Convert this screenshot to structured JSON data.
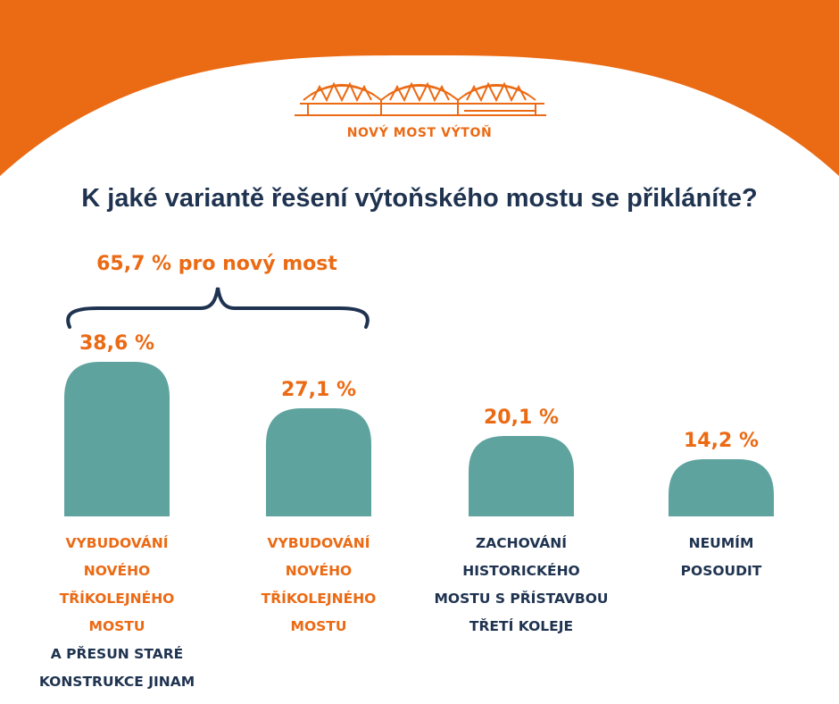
{
  "colors": {
    "accent": "#EB6A14",
    "bar": "#5FA39F",
    "navy": "#1F3350",
    "background": "#FFFFFF"
  },
  "logo": {
    "text": "NOVÝ MOST VÝTOŇ",
    "icon": "bridge-arches-icon"
  },
  "title": "K jaké variantě řešení výtoňského mostu se přikláníte?",
  "group": {
    "label": "65,7 % pro nový most",
    "bracket_icon": "curly-brace-icon"
  },
  "chart_data": {
    "type": "bar",
    "title": "K jaké variantě řešení výtoňského mostu se přikláníte?",
    "categories": [
      "VYBUDOVÁNÍ NOVÉHO TŘÍKOLEJNÉHO MOSTU A PŘESUN STARÉ KONSTRUKCE JINAM",
      "VYBUDOVÁNÍ NOVÉHO TŘÍKOLEJNÉHO MOSTU",
      "ZACHOVÁNÍ HISTORICKÉHO MOSTU S PŘÍSTAVBOU TŘETÍ KOLEJE",
      "NEUMÍM POSOUDIT"
    ],
    "values": [
      38.6,
      27.1,
      20.1,
      14.2
    ],
    "value_labels": [
      "38,6 %",
      "27,1 %",
      "20,1 %",
      "14,2 %"
    ],
    "unit": "%",
    "ylim": [
      0,
      38.6
    ],
    "grid": false,
    "legend": "none",
    "annotation": "65,7 % pro nový most"
  },
  "categories_display": [
    {
      "lines": [
        {
          "text": "VYBUDOVÁNÍ",
          "color": "accent"
        },
        {
          "text": "NOVÉHO",
          "color": "accent"
        },
        {
          "text": "TŘÍKOLEJNÉHO",
          "color": "accent"
        },
        {
          "text": "MOSTU",
          "color": "accent"
        },
        {
          "text": "A PŘESUN STARÉ",
          "color": "navy"
        },
        {
          "text": "KONSTRUKCE JINAM",
          "color": "navy"
        }
      ]
    },
    {
      "lines": [
        {
          "text": "VYBUDOVÁNÍ",
          "color": "accent"
        },
        {
          "text": "NOVÉHO",
          "color": "accent"
        },
        {
          "text": "TŘÍKOLEJNÉHO",
          "color": "accent"
        },
        {
          "text": "MOSTU",
          "color": "accent"
        }
      ]
    },
    {
      "lines": [
        {
          "text": "ZACHOVÁNÍ",
          "color": "navy"
        },
        {
          "text": "HISTORICKÉHO",
          "color": "navy"
        },
        {
          "text": "MOSTU S PŘÍSTAVBOU",
          "color": "navy"
        },
        {
          "text": "TŘETÍ KOLEJE",
          "color": "navy"
        }
      ]
    },
    {
      "lines": [
        {
          "text": "NEUMÍM",
          "color": "navy"
        },
        {
          "text": "POSOUDIT",
          "color": "navy"
        }
      ]
    }
  ]
}
